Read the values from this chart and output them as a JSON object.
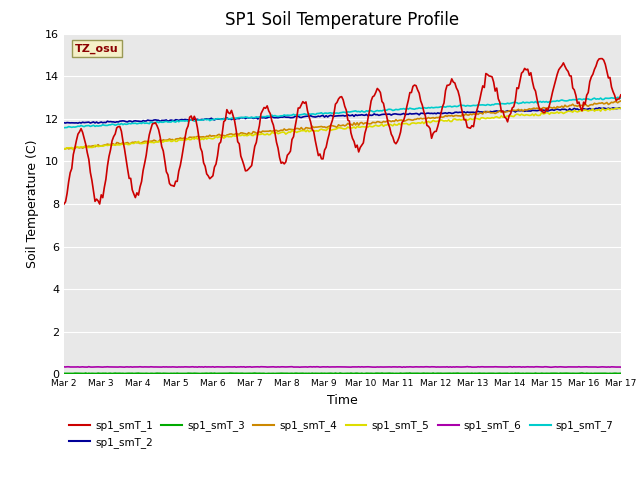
{
  "title": "SP1 Soil Temperature Profile",
  "xlabel": "Time",
  "ylabel": "Soil Temperature (C)",
  "ylim": [
    0,
    16
  ],
  "yticks": [
    0,
    2,
    4,
    6,
    8,
    10,
    12,
    14,
    16
  ],
  "background_color": "#e8e8e8",
  "annotation_text": "TZ_osu",
  "annotation_color": "#8B0000",
  "annotation_bg": "#f5f0c8",
  "annotation_edge": "#999955",
  "series_order": [
    "sp1_smT_2",
    "sp1_smT_3",
    "sp1_smT_4",
    "sp1_smT_5",
    "sp1_smT_6",
    "sp1_smT_7",
    "sp1_smT_1"
  ],
  "series_colors": {
    "sp1_smT_1": "#cc0000",
    "sp1_smT_2": "#000099",
    "sp1_smT_3": "#00aa00",
    "sp1_smT_4": "#cc8800",
    "sp1_smT_5": "#dddd00",
    "sp1_smT_6": "#aa00aa",
    "sp1_smT_7": "#00cccc"
  },
  "series_linewidth": 1.2,
  "xtick_labels": [
    "Mar 2",
    "Mar 3",
    "Mar 4",
    "Mar 5",
    "Mar 6",
    "Mar 7",
    "Mar 8",
    "Mar 9",
    "Mar 10",
    "Mar 11",
    "Mar 12",
    "Mar 13",
    "Mar 14",
    "Mar 15",
    "Mar 16",
    "Mar 17"
  ],
  "legend_labels": [
    "sp1_smT_1",
    "sp1_smT_2",
    "sp1_smT_3",
    "sp1_smT_4",
    "sp1_smT_5",
    "sp1_smT_6",
    "sp1_smT_7"
  ]
}
